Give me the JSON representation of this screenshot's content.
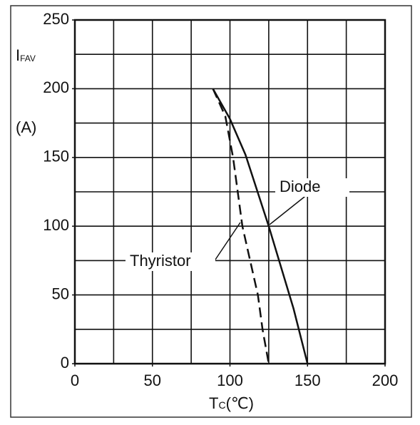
{
  "chart_data": {
    "type": "line",
    "y_label": "I",
    "y_label_sub": "FAV",
    "y_unit": "(A)",
    "x_label": "T",
    "x_label_sub": "C",
    "x_unit": "(℃)",
    "xlim": [
      0,
      200
    ],
    "xticks": [
      0,
      50,
      100,
      150,
      200
    ],
    "ylim": [
      0,
      250
    ],
    "yticks": [
      0,
      50,
      100,
      150,
      200,
      250
    ],
    "grid": true,
    "grid_step_x": 25,
    "grid_step_y": 25,
    "series": [
      {
        "name": "Diode",
        "color": "#111111",
        "dash": false,
        "x": [
          89,
          100,
          110,
          125,
          141,
          150
        ],
        "values": [
          200,
          178,
          152,
          100,
          40,
          0
        ]
      },
      {
        "name": "Thyristor",
        "color": "#111111",
        "dash": true,
        "x": [
          89,
          97,
          102,
          108,
          118,
          121,
          125
        ],
        "values": [
          200,
          180,
          150,
          100,
          50,
          25,
          0
        ]
      }
    ]
  }
}
